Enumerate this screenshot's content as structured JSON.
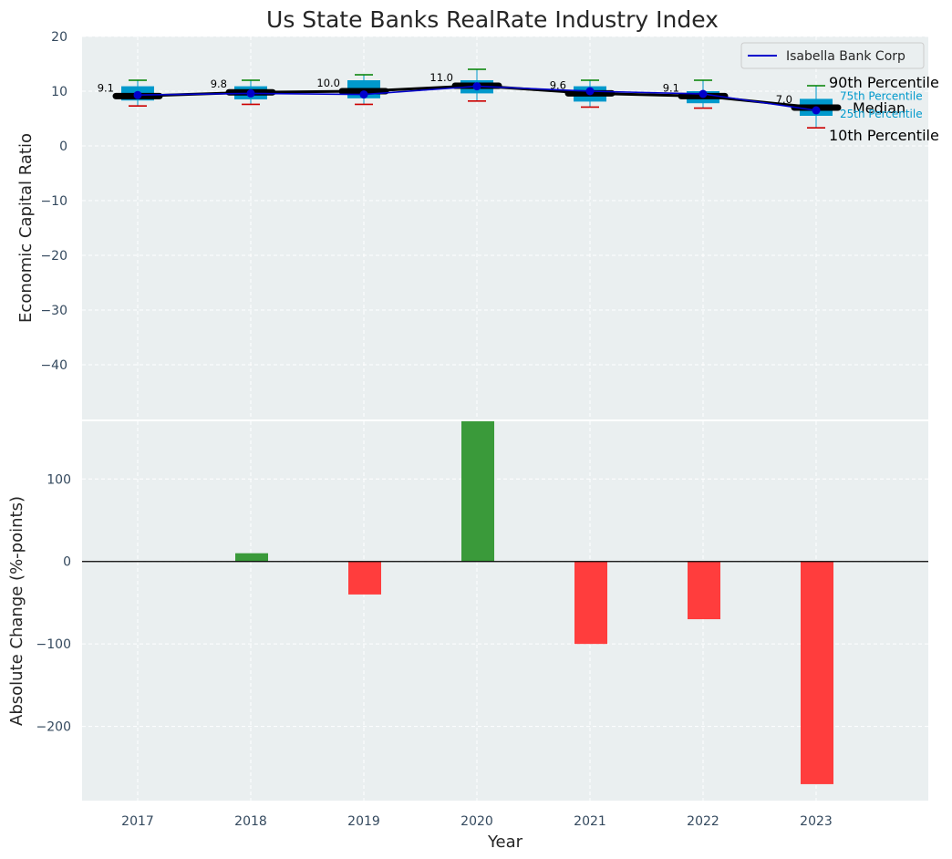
{
  "chart_data": [
    {
      "type": "boxplot-line",
      "title": "Us State Banks RealRate Industry Index",
      "ylabel": "Economic Capital Ratio",
      "ylim": [
        -50,
        20
      ],
      "yticks": [
        20,
        10,
        0,
        -10,
        -20,
        -30,
        -40
      ],
      "categories": [
        "2017",
        "2018",
        "2019",
        "2020",
        "2021",
        "2022",
        "2023"
      ],
      "industry": {
        "p10": [
          7.3,
          7.6,
          7.6,
          8.2,
          7.1,
          6.9,
          3.3
        ],
        "p25": [
          8.3,
          8.5,
          8.7,
          9.6,
          8.1,
          7.8,
          5.5
        ],
        "median": [
          9.1,
          9.8,
          10.0,
          11.0,
          9.6,
          9.1,
          7.0
        ],
        "p75": [
          10.9,
          10.9,
          12.0,
          12.0,
          10.9,
          10.0,
          8.6
        ],
        "p90": [
          12.0,
          12.0,
          13.0,
          14.0,
          12.0,
          12.0,
          11.0
        ]
      },
      "median_labels": [
        "9.1",
        "9.8",
        "10.0",
        "11.0",
        "9.6",
        "9.1",
        "7.0"
      ],
      "series": [
        {
          "name": "Isabella Bank Corp",
          "values": [
            9.3,
            9.6,
            9.4,
            10.9,
            10.0,
            9.5,
            6.5
          ],
          "color": "#0000cc"
        }
      ],
      "legend": {
        "label": "Isabella Bank Corp",
        "position": "top-right"
      },
      "annotations": {
        "p90": "90th Percentile",
        "p75": "75th Percentile",
        "median": "Median",
        "p25": "25th Percentile",
        "p10": "10th Percentile"
      },
      "colors": {
        "box": "#0099cc",
        "median": "#000000",
        "whisker_top": "#008000",
        "whisker_bottom": "#cc0000",
        "background": "#eaeff0"
      }
    },
    {
      "type": "bar",
      "ylabel": "Absolute Change (%-points)",
      "xlabel": "Year",
      "ylim": [
        -290,
        170
      ],
      "yticks": [
        100,
        0,
        -100,
        -200
      ],
      "categories": [
        "2017",
        "2018",
        "2019",
        "2020",
        "2021",
        "2022",
        "2023"
      ],
      "values": [
        0,
        10,
        -40,
        170,
        -100,
        -70,
        -270
      ],
      "colors": {
        "positive": "#3a9a3a",
        "negative": "#ff3d3d"
      }
    }
  ]
}
